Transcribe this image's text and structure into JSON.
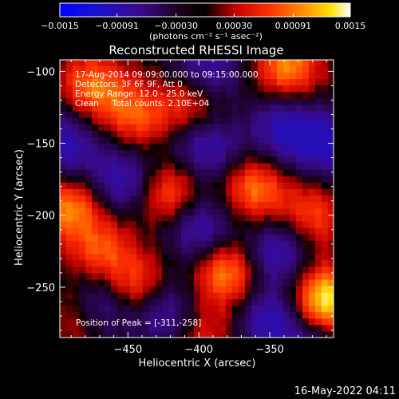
{
  "chart_data": {
    "type": "heatmap",
    "title": "Reconstructed RHESSI Image",
    "xlabel": "Heliocentric X (arcsec)",
    "ylabel": "Heliocentric Y (arcsec)",
    "xlim": [
      -498,
      -305
    ],
    "ylim": [
      -285,
      -92
    ],
    "xticks": [
      -450,
      -400,
      -350
    ],
    "xtick_labels": [
      "−450",
      "−400",
      "−350"
    ],
    "yticks": [
      -100,
      -150,
      -200,
      -250
    ],
    "ytick_labels": [
      "−100",
      "−150",
      "−200",
      "−250"
    ],
    "colorbar": {
      "range": [
        -0.0015,
        0.0015
      ],
      "tick_values": [
        -0.0015,
        -0.00091,
        -0.0003,
        0.0003,
        0.00091,
        0.0015
      ],
      "tick_labels": [
        "−0.0015",
        "−0.00091",
        "−0.00030",
        "0.00030",
        "0.00091",
        "0.0015"
      ],
      "unit_label": "(photons cm⁻² s⁻¹ asec⁻²)"
    },
    "annotations": [
      "17-Aug-2014 09:09:00.000 to 09:15:00.000",
      "Detectors: 3F 6F 9F, Att 0",
      "Energy Range: 12.0 - 25.0 keV",
      "Clean     Total counts: 2.10E+04"
    ],
    "peak_label": "Position of Peak = [-311,-258]",
    "sources": [
      {
        "x": -311,
        "y": -258,
        "amp": 1.0
      },
      {
        "x": -337,
        "y": -97,
        "amp": 0.7
      },
      {
        "x": -475,
        "y": -110,
        "amp": 0.62
      },
      {
        "x": -445,
        "y": -130,
        "amp": 0.55
      },
      {
        "x": -405,
        "y": -122,
        "amp": 0.55
      },
      {
        "x": -420,
        "y": -185,
        "amp": 0.6
      },
      {
        "x": -490,
        "y": -195,
        "amp": 0.68
      },
      {
        "x": -468,
        "y": -225,
        "amp": 0.5
      },
      {
        "x": -445,
        "y": -248,
        "amp": 0.5
      },
      {
        "x": -380,
        "y": -240,
        "amp": 0.72
      },
      {
        "x": -360,
        "y": -182,
        "amp": 0.65
      },
      {
        "x": -320,
        "y": -200,
        "amp": 0.5
      },
      {
        "x": -400,
        "y": -280,
        "amp": 0.45
      },
      {
        "x": -485,
        "y": -270,
        "amp": 0.4
      }
    ]
  },
  "footer": {
    "timestamp": "16-May-2022 04:11"
  }
}
